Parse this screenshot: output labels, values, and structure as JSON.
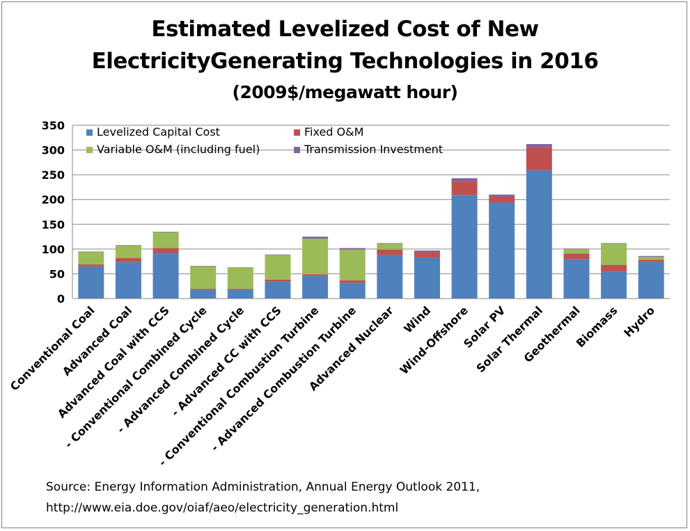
{
  "chart_data": {
    "type": "bar",
    "stacked": true,
    "title": "Estimated Levelized Cost of New",
    "title_line2": "ElectricityGenerating Technologies in 2016",
    "subtitle": "(2009$/megawatt hour)",
    "ylim": [
      0,
      350
    ],
    "yticks": [
      0,
      50,
      100,
      150,
      200,
      250,
      300,
      350
    ],
    "grid": true,
    "legend_position": "top-left",
    "categories": [
      "Conventional Coal",
      "Advanced Coal",
      "Advanced Coal with CCS",
      "- Conventional Combined Cycle",
      "- Advanced Combined Cycle",
      "- Advanced CC with CCS",
      "- Conventional Combustion Turbine",
      "- Advanced Combustion Turbine",
      "Advanced Nuclear",
      "Wind",
      "Wind-Offshore",
      "Solar PV",
      "Solar Thermal",
      "Geothermal",
      "Biomass",
      "Hydro"
    ],
    "series": [
      {
        "name": "Levelized Capital  Cost",
        "color": "#4f81bd",
        "values": [
          65,
          74,
          92,
          18,
          18,
          34,
          46,
          32,
          88,
          83,
          209,
          194,
          259,
          79,
          55,
          74
        ]
      },
      {
        "name": "Fixed O&M",
        "color": "#c0504d",
        "values": [
          4,
          8,
          10,
          2,
          2,
          4,
          3,
          5,
          11,
          11,
          28,
          12,
          47,
          12,
          13,
          4
        ]
      },
      {
        "name": "Variable O&M (including fuel)",
        "color": "#9bbb59",
        "values": [
          25,
          25,
          32,
          45,
          42,
          50,
          72,
          62,
          12,
          0,
          0,
          0,
          0,
          9,
          43,
          6
        ]
      },
      {
        "name": "Transmission Investment",
        "color": "#8064a2",
        "values": [
          1,
          1,
          1,
          1,
          1,
          1,
          4,
          3,
          1,
          3,
          6,
          4,
          6,
          1,
          1,
          2
        ]
      }
    ]
  },
  "source": {
    "line1": "Source: Energy Information Administration, Annual Energy Outlook 2011,",
    "line2": "http://www.eia.doe.gov/oiaf/aeo/electricity_generation.html"
  }
}
